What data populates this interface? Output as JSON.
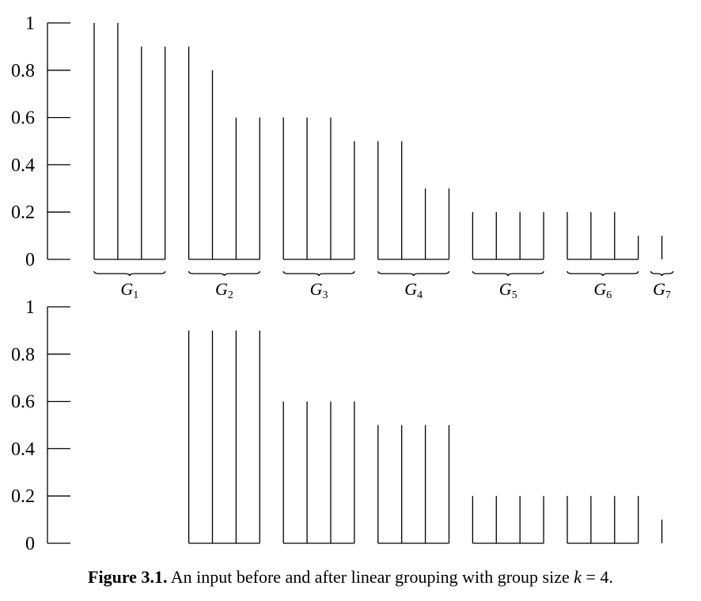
{
  "chart_data": [
    {
      "type": "bar",
      "title": "",
      "xlabel": "",
      "ylabel": "",
      "ylim": [
        0,
        1
      ],
      "yticks": [
        "0",
        "0.2",
        "0.4",
        "0.6",
        "0.8",
        "1"
      ],
      "groups": [
        {
          "label": "G",
          "sub": "1",
          "values": [
            1.0,
            1.0,
            0.9,
            0.9
          ]
        },
        {
          "label": "G",
          "sub": "2",
          "values": [
            0.9,
            0.8,
            0.6,
            0.6
          ]
        },
        {
          "label": "G",
          "sub": "3",
          "values": [
            0.6,
            0.6,
            0.6,
            0.5
          ]
        },
        {
          "label": "G",
          "sub": "4",
          "values": [
            0.5,
            0.5,
            0.3,
            0.3
          ]
        },
        {
          "label": "G",
          "sub": "5",
          "values": [
            0.2,
            0.2,
            0.2,
            0.2
          ]
        },
        {
          "label": "G",
          "sub": "6",
          "values": [
            0.2,
            0.2,
            0.2,
            0.1
          ]
        },
        {
          "label": "G",
          "sub": "7",
          "values": [
            0.1
          ]
        }
      ]
    },
    {
      "type": "bar",
      "title": "",
      "xlabel": "",
      "ylabel": "",
      "ylim": [
        0,
        1
      ],
      "yticks": [
        "0",
        "0.2",
        "0.4",
        "0.6",
        "0.8",
        "1"
      ],
      "groups": [
        {
          "values": []
        },
        {
          "values": [
            0.9,
            0.9,
            0.9,
            0.9
          ]
        },
        {
          "values": [
            0.6,
            0.6,
            0.6,
            0.6
          ]
        },
        {
          "values": [
            0.5,
            0.5,
            0.5,
            0.5
          ]
        },
        {
          "values": [
            0.2,
            0.2,
            0.2,
            0.2
          ]
        },
        {
          "values": [
            0.2,
            0.2,
            0.2,
            0.2
          ]
        },
        {
          "values": [
            0.1
          ]
        }
      ]
    }
  ],
  "caption": {
    "label": "Figure 3.1.",
    "text_before": "An input before and after linear grouping with group size ",
    "var": "k",
    "text_after": " = 4."
  }
}
